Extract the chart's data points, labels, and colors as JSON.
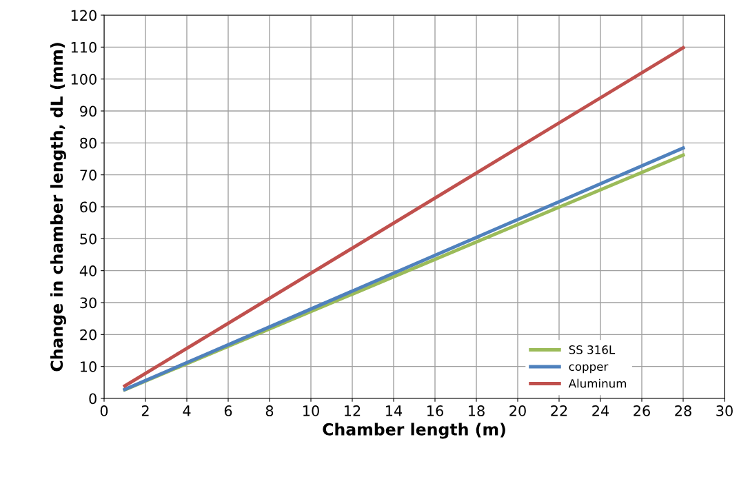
{
  "chart_data": {
    "type": "line",
    "xlabel": "Chamber length (m)",
    "ylabel": "Change in chamber length, dL (mm)",
    "x": [
      1,
      28
    ],
    "series": [
      {
        "name": "SS 316L",
        "color": "#9bbb59",
        "values": [
          2.7,
          76.2
        ]
      },
      {
        "name": "copper",
        "color": "#4f81bd",
        "values": [
          2.8,
          78.4
        ]
      },
      {
        "name": "Aluminum",
        "color": "#c0504d",
        "values": [
          3.9,
          109.8
        ]
      }
    ],
    "xlim": [
      0,
      30
    ],
    "xticks": [
      0,
      2,
      4,
      6,
      8,
      10,
      12,
      14,
      16,
      18,
      20,
      22,
      24,
      26,
      28,
      30
    ],
    "ylim": [
      0,
      120
    ],
    "yticks": [
      0,
      10,
      20,
      30,
      40,
      50,
      60,
      70,
      80,
      90,
      100,
      110,
      120
    ],
    "grid": true,
    "legend": "bottom right",
    "marker": "none",
    "line_style": "solid"
  }
}
